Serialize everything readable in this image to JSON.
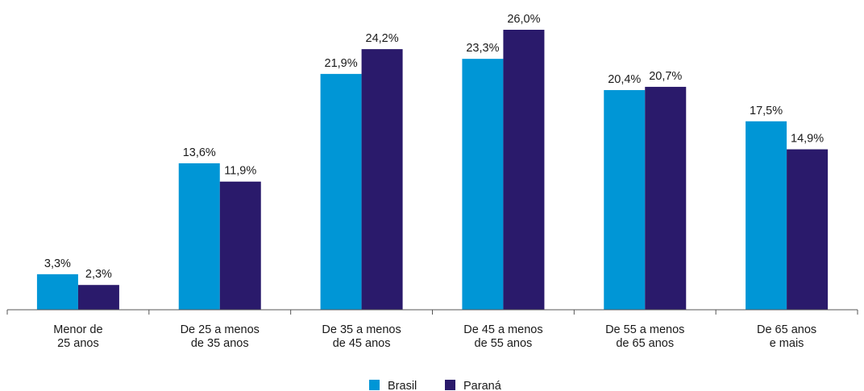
{
  "chart_data": {
    "type": "bar",
    "categories": [
      [
        "Menor de",
        "25 anos"
      ],
      [
        "De 25 a menos",
        "de 35 anos"
      ],
      [
        "De 35 a menos",
        "de 45 anos"
      ],
      [
        "De 45 a menos",
        "de 55 anos"
      ],
      [
        "De 55 a menos",
        "de 65 anos"
      ],
      [
        "De 65 anos",
        "e mais"
      ]
    ],
    "series": [
      {
        "name": "Brasil",
        "color": "#0096d6",
        "values": [
          3.3,
          13.6,
          21.9,
          23.3,
          20.4,
          17.5
        ],
        "labels": [
          "3,3%",
          "13,6%",
          "21,9%",
          "23,3%",
          "20,4%",
          "17,5%"
        ]
      },
      {
        "name": "Paraná",
        "color": "#2a1a6b",
        "values": [
          2.3,
          11.9,
          24.2,
          26.0,
          20.7,
          14.9
        ],
        "labels": [
          "2,3%",
          "11,9%",
          "24,2%",
          "26,0%",
          "20,7%",
          "14,9%"
        ]
      }
    ],
    "ylim": [
      0,
      26
    ],
    "grid": false,
    "legend": "bottom-center"
  }
}
